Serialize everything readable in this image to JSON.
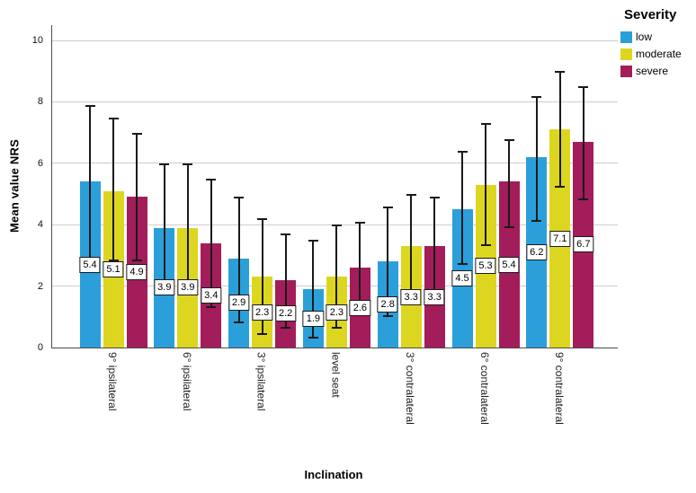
{
  "chart_data": {
    "type": "bar",
    "title": "",
    "xlabel": "Inclination",
    "ylabel": "Mean value NRS",
    "legend_title": "Severity",
    "legend_position": "top-right",
    "grid": true,
    "ylim": [
      0,
      10.5
    ],
    "yticks": [
      0,
      2,
      4,
      6,
      8,
      10
    ],
    "categories": [
      "9° ipsilateral",
      "6° ipsilateral",
      "3° ipsilateral",
      "level seat",
      "3° contralateral",
      "6° contralateral",
      "9° contralateral"
    ],
    "series": [
      {
        "name": "low",
        "color": "#2B9FD9",
        "values": [
          5.4,
          3.9,
          2.9,
          1.9,
          2.8,
          4.5,
          6.2
        ],
        "err_low": [
          2.9,
          1.8,
          0.8,
          0.3,
          1.0,
          2.7,
          4.1
        ],
        "err_high": [
          7.9,
          6.0,
          4.9,
          3.5,
          4.6,
          6.4,
          8.2
        ]
      },
      {
        "name": "moderate",
        "color": "#DDD621",
        "values": [
          5.1,
          3.9,
          2.3,
          2.3,
          3.3,
          5.3,
          7.1
        ],
        "err_low": [
          2.8,
          1.8,
          0.4,
          0.6,
          1.5,
          3.3,
          5.2
        ],
        "err_high": [
          7.5,
          6.0,
          4.2,
          4.0,
          5.0,
          7.3,
          9.0
        ]
      },
      {
        "name": "severe",
        "color": "#A21D59",
        "values": [
          4.9,
          3.4,
          2.2,
          2.6,
          3.3,
          5.4,
          6.7
        ],
        "err_low": [
          2.8,
          1.3,
          0.6,
          1.1,
          1.6,
          3.9,
          4.8
        ],
        "err_high": [
          7.0,
          5.5,
          3.7,
          4.1,
          4.9,
          6.8,
          8.5
        ]
      }
    ],
    "colors": {
      "gridline": "#cccccc",
      "axis": "#4a4a4a",
      "error_bar": "#1a1a1a",
      "label_box_border": "#1a1a1a",
      "label_box_fill": "#ffffff"
    }
  }
}
